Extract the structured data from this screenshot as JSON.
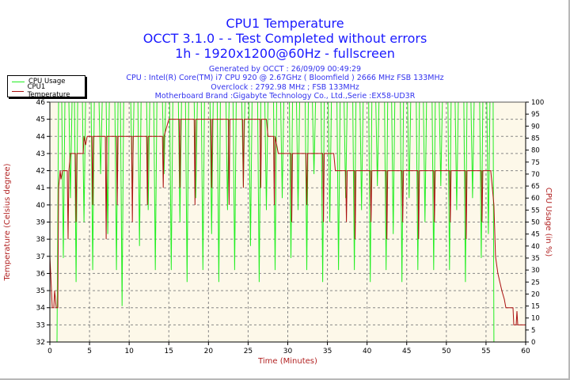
{
  "titles": {
    "title": "CPU1 Temperature",
    "subtitle1": "OCCT 3.1.0 -  - Test Completed without errors",
    "subtitle2": "1h - 1920x1200@60Hz - fullscreen",
    "info1": "Generated by OCCT : 26/09/09 00:49:29",
    "info2": "CPU : Intel(R) Core(TM) i7 CPU 920 @ 2.67GHz ( Bloomfield ) 2666 MHz FSB 133MHz",
    "info3": "Overclock : 2792.98 MHz ; FSB 133MHz",
    "info4": "Motherboard Brand :Gigabyte Technology Co., Ltd.,Serie :EX58-UD3R"
  },
  "colors": {
    "usage": "#22ee22",
    "temperature": "#aa1111",
    "background": "#fdf8e9",
    "title": "#1a1aff",
    "axis_label": "#b22222"
  },
  "chart_data": {
    "type": "line",
    "xlabel": "Time (Minutes)",
    "ylabel": "Temperature (Celsius degree)",
    "y2label": "CPU Usage (in %)",
    "xlim": [
      0,
      60
    ],
    "ylim": [
      32,
      46
    ],
    "y2lim": [
      0,
      100
    ],
    "xticks": [
      0,
      5,
      10,
      15,
      20,
      25,
      30,
      35,
      40,
      45,
      50,
      55,
      60
    ],
    "yticks": [
      32,
      33,
      34,
      35,
      36,
      37,
      38,
      39,
      40,
      41,
      42,
      43,
      44,
      45,
      46
    ],
    "y2ticks": [
      0,
      5,
      10,
      15,
      20,
      25,
      30,
      35,
      40,
      45,
      50,
      55,
      60,
      65,
      70,
      75,
      80,
      85,
      90,
      95,
      100
    ],
    "grid": true,
    "legend_position": "top-left",
    "series": [
      {
        "name": "CPU Usage",
        "axis": "right",
        "points": [
          [
            0,
            0
          ],
          [
            0.9,
            0
          ],
          [
            1.1,
            100
          ],
          [
            1.5,
            100
          ],
          [
            1.7,
            35
          ],
          [
            1.9,
            100
          ],
          [
            2.4,
            100
          ],
          [
            2.6,
            60
          ],
          [
            2.8,
            100
          ],
          [
            3.1,
            100
          ],
          [
            3.3,
            25
          ],
          [
            3.5,
            100
          ],
          [
            4.1,
            100
          ],
          [
            4.3,
            50
          ],
          [
            4.5,
            100
          ],
          [
            5.2,
            100
          ],
          [
            5.4,
            30
          ],
          [
            5.6,
            100
          ],
          [
            6.2,
            100
          ],
          [
            6.4,
            70
          ],
          [
            6.6,
            100
          ],
          [
            7.1,
            100
          ],
          [
            7.3,
            45
          ],
          [
            7.5,
            100
          ],
          [
            8.2,
            100
          ],
          [
            8.4,
            30
          ],
          [
            8.6,
            100
          ],
          [
            8.9,
            100
          ],
          [
            9.1,
            15
          ],
          [
            9.3,
            100
          ],
          [
            10.2,
            100
          ],
          [
            10.4,
            60
          ],
          [
            10.6,
            100
          ],
          [
            11.1,
            100
          ],
          [
            11.3,
            40
          ],
          [
            11.5,
            100
          ],
          [
            12.2,
            100
          ],
          [
            12.4,
            55
          ],
          [
            12.6,
            100
          ],
          [
            13.1,
            100
          ],
          [
            13.3,
            30
          ],
          [
            13.5,
            100
          ],
          [
            14.2,
            100
          ],
          [
            14.4,
            70
          ],
          [
            14.6,
            100
          ],
          [
            15.1,
            100
          ],
          [
            15.3,
            30
          ],
          [
            15.5,
            100
          ],
          [
            16.2,
            100
          ],
          [
            16.4,
            50
          ],
          [
            16.6,
            100
          ],
          [
            17.1,
            100
          ],
          [
            17.3,
            25
          ],
          [
            17.5,
            100
          ],
          [
            18.2,
            100
          ],
          [
            18.4,
            60
          ],
          [
            18.6,
            100
          ],
          [
            19.1,
            100
          ],
          [
            19.3,
            30
          ],
          [
            19.5,
            100
          ],
          [
            20.2,
            100
          ],
          [
            20.4,
            45
          ],
          [
            20.6,
            100
          ],
          [
            21.1,
            100
          ],
          [
            21.3,
            25
          ],
          [
            21.5,
            100
          ],
          [
            22.2,
            100
          ],
          [
            22.4,
            55
          ],
          [
            22.6,
            100
          ],
          [
            23.1,
            100
          ],
          [
            23.3,
            30
          ],
          [
            23.5,
            100
          ],
          [
            24.2,
            100
          ],
          [
            24.4,
            65
          ],
          [
            24.6,
            100
          ],
          [
            25.1,
            100
          ],
          [
            25.3,
            40
          ],
          [
            25.5,
            100
          ],
          [
            26.2,
            100
          ],
          [
            26.4,
            25
          ],
          [
            26.6,
            100
          ],
          [
            27.1,
            100
          ],
          [
            27.3,
            55
          ],
          [
            27.5,
            100
          ],
          [
            28.2,
            100
          ],
          [
            28.4,
            30
          ],
          [
            28.6,
            100
          ],
          [
            29.1,
            100
          ],
          [
            29.3,
            60
          ],
          [
            29.5,
            100
          ],
          [
            30.2,
            100
          ],
          [
            30.4,
            35
          ],
          [
            30.6,
            100
          ],
          [
            31.1,
            100
          ],
          [
            31.3,
            55
          ],
          [
            31.5,
            100
          ],
          [
            32.2,
            100
          ],
          [
            32.4,
            30
          ],
          [
            32.6,
            100
          ],
          [
            33.1,
            100
          ],
          [
            33.3,
            70
          ],
          [
            33.5,
            100
          ],
          [
            34.2,
            100
          ],
          [
            34.4,
            25
          ],
          [
            34.6,
            100
          ],
          [
            35.1,
            100
          ],
          [
            35.3,
            50
          ],
          [
            35.5,
            100
          ],
          [
            36.2,
            100
          ],
          [
            36.4,
            30
          ],
          [
            36.6,
            100
          ],
          [
            37.1,
            100
          ],
          [
            37.3,
            60
          ],
          [
            37.5,
            100
          ],
          [
            38.2,
            100
          ],
          [
            38.4,
            30
          ],
          [
            38.6,
            100
          ],
          [
            39.1,
            100
          ],
          [
            39.3,
            55
          ],
          [
            39.5,
            100
          ],
          [
            40.2,
            100
          ],
          [
            40.4,
            25
          ],
          [
            40.6,
            100
          ],
          [
            41.1,
            100
          ],
          [
            41.3,
            65
          ],
          [
            41.5,
            100
          ],
          [
            42.2,
            100
          ],
          [
            42.4,
            30
          ],
          [
            42.6,
            100
          ],
          [
            43.1,
            100
          ],
          [
            43.3,
            45
          ],
          [
            43.5,
            100
          ],
          [
            44.2,
            100
          ],
          [
            44.4,
            25
          ],
          [
            44.6,
            100
          ],
          [
            45.1,
            100
          ],
          [
            45.3,
            60
          ],
          [
            45.5,
            100
          ],
          [
            46.2,
            100
          ],
          [
            46.4,
            30
          ],
          [
            46.6,
            100
          ],
          [
            47.1,
            100
          ],
          [
            47.3,
            50
          ],
          [
            47.5,
            100
          ],
          [
            48.2,
            100
          ],
          [
            48.4,
            30
          ],
          [
            48.6,
            100
          ],
          [
            49.1,
            100
          ],
          [
            49.3,
            65
          ],
          [
            49.5,
            100
          ],
          [
            50.2,
            100
          ],
          [
            50.4,
            30
          ],
          [
            50.6,
            100
          ],
          [
            51.1,
            100
          ],
          [
            51.3,
            55
          ],
          [
            51.5,
            100
          ],
          [
            52.2,
            100
          ],
          [
            52.4,
            25
          ],
          [
            52.6,
            100
          ],
          [
            53.1,
            100
          ],
          [
            53.3,
            60
          ],
          [
            53.5,
            100
          ],
          [
            54.2,
            100
          ],
          [
            54.4,
            35
          ],
          [
            54.6,
            100
          ],
          [
            55.1,
            100
          ],
          [
            55.3,
            45
          ],
          [
            55.5,
            100
          ],
          [
            55.9,
            100
          ],
          [
            56,
            0
          ],
          [
            60,
            0
          ]
        ]
      },
      {
        "name": "CPU1 Temperature",
        "axis": "left",
        "points": [
          [
            0,
            37
          ],
          [
            0.2,
            35
          ],
          [
            0.3,
            34
          ],
          [
            0.5,
            34
          ],
          [
            0.6,
            35
          ],
          [
            0.8,
            34
          ],
          [
            1,
            34
          ],
          [
            1.1,
            41
          ],
          [
            1.3,
            42
          ],
          [
            1.4,
            41.5
          ],
          [
            1.6,
            42
          ],
          [
            2.2,
            42
          ],
          [
            2.3,
            38
          ],
          [
            2.4,
            42
          ],
          [
            2.6,
            43
          ],
          [
            3.2,
            43
          ],
          [
            3.3,
            39
          ],
          [
            3.4,
            43
          ],
          [
            4.2,
            43
          ],
          [
            4.3,
            44
          ],
          [
            4.5,
            43.5
          ],
          [
            4.7,
            44
          ],
          [
            5.3,
            44
          ],
          [
            5.4,
            40
          ],
          [
            5.5,
            44
          ],
          [
            7,
            44
          ],
          [
            7.1,
            38
          ],
          [
            7.2,
            44
          ],
          [
            8.4,
            44
          ],
          [
            8.5,
            40
          ],
          [
            8.6,
            44
          ],
          [
            10.3,
            44
          ],
          [
            10.4,
            39
          ],
          [
            10.5,
            44
          ],
          [
            12.2,
            44
          ],
          [
            12.3,
            40
          ],
          [
            12.4,
            44
          ],
          [
            14.2,
            44
          ],
          [
            14.3,
            41
          ],
          [
            14.4,
            44
          ],
          [
            15,
            45
          ],
          [
            16.3,
            45
          ],
          [
            16.4,
            41
          ],
          [
            16.5,
            45
          ],
          [
            18.2,
            45
          ],
          [
            18.3,
            40
          ],
          [
            18.4,
            45
          ],
          [
            20.3,
            45
          ],
          [
            20.4,
            41
          ],
          [
            20.5,
            45
          ],
          [
            22.5,
            45
          ],
          [
            22.6,
            40
          ],
          [
            22.7,
            45
          ],
          [
            24.3,
            45
          ],
          [
            24.4,
            41
          ],
          [
            24.5,
            45
          ],
          [
            26.5,
            45
          ],
          [
            26.6,
            41
          ],
          [
            26.7,
            45
          ],
          [
            27.3,
            45
          ],
          [
            27.5,
            44
          ],
          [
            28.2,
            44
          ],
          [
            28.3,
            40
          ],
          [
            28.4,
            44
          ],
          [
            28.8,
            43
          ],
          [
            30.4,
            43
          ],
          [
            30.5,
            39
          ],
          [
            30.6,
            43
          ],
          [
            32.3,
            43
          ],
          [
            32.4,
            40
          ],
          [
            32.5,
            43
          ],
          [
            34.4,
            43
          ],
          [
            34.5,
            39
          ],
          [
            34.6,
            43
          ],
          [
            35.8,
            43
          ],
          [
            36,
            42
          ],
          [
            37.3,
            42
          ],
          [
            37.4,
            39
          ],
          [
            37.5,
            42
          ],
          [
            38.4,
            42
          ],
          [
            38.5,
            38
          ],
          [
            38.6,
            42
          ],
          [
            40.4,
            42
          ],
          [
            40.5,
            39
          ],
          [
            40.6,
            42
          ],
          [
            42.4,
            42
          ],
          [
            42.5,
            38
          ],
          [
            42.6,
            42
          ],
          [
            44.4,
            42
          ],
          [
            44.5,
            39
          ],
          [
            44.6,
            42
          ],
          [
            46.4,
            42
          ],
          [
            46.5,
            38
          ],
          [
            46.6,
            42
          ],
          [
            48.4,
            42
          ],
          [
            48.5,
            39
          ],
          [
            48.6,
            42
          ],
          [
            50.4,
            42
          ],
          [
            50.5,
            39
          ],
          [
            50.6,
            42
          ],
          [
            52.4,
            42
          ],
          [
            52.5,
            38
          ],
          [
            52.6,
            42
          ],
          [
            54.4,
            42
          ],
          [
            54.5,
            39
          ],
          [
            54.6,
            42
          ],
          [
            55.6,
            42
          ],
          [
            55.8,
            41
          ],
          [
            56,
            40
          ],
          [
            56.2,
            37
          ],
          [
            56.5,
            36
          ],
          [
            57,
            35
          ],
          [
            57.3,
            34.5
          ],
          [
            57.5,
            34
          ],
          [
            58.4,
            34
          ],
          [
            58.5,
            33
          ],
          [
            58.8,
            33
          ],
          [
            58.9,
            33.8
          ],
          [
            59,
            33
          ],
          [
            60,
            33
          ]
        ]
      }
    ]
  }
}
